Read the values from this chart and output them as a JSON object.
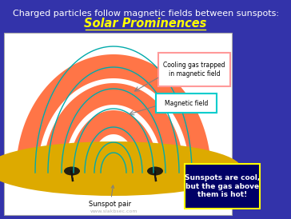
{
  "title_line1": "Charged particles follow magnetic fields between sunspots:",
  "title_line2": "Solar Prominences",
  "title_line1_color": "#ffffff",
  "title_line2_color": "#ffff00",
  "background_color": "#3333aa",
  "diagram_bg": "#ffffff",
  "label_cooling_gas": "Cooling gas trapped\nin magnetic field",
  "label_magnetic_field": "Magnetic field",
  "label_sunspot_pair": "Sunspot pair",
  "label_sunspot_box": "Sunspots are cool,\nbut the gas above\nthem is hot!",
  "label_cooling_box_color": "#ff9999",
  "label_magnetic_box_color": "#00cccc",
  "sunspot_box_bg": "#000066",
  "sunspot_box_border": "#ffff00",
  "sun_surface_color": "#ddaa00",
  "prominence_fill_color": "#ff6633",
  "magnetic_line_color": "#00aaaa",
  "watermark": "www.slakbsec.com"
}
